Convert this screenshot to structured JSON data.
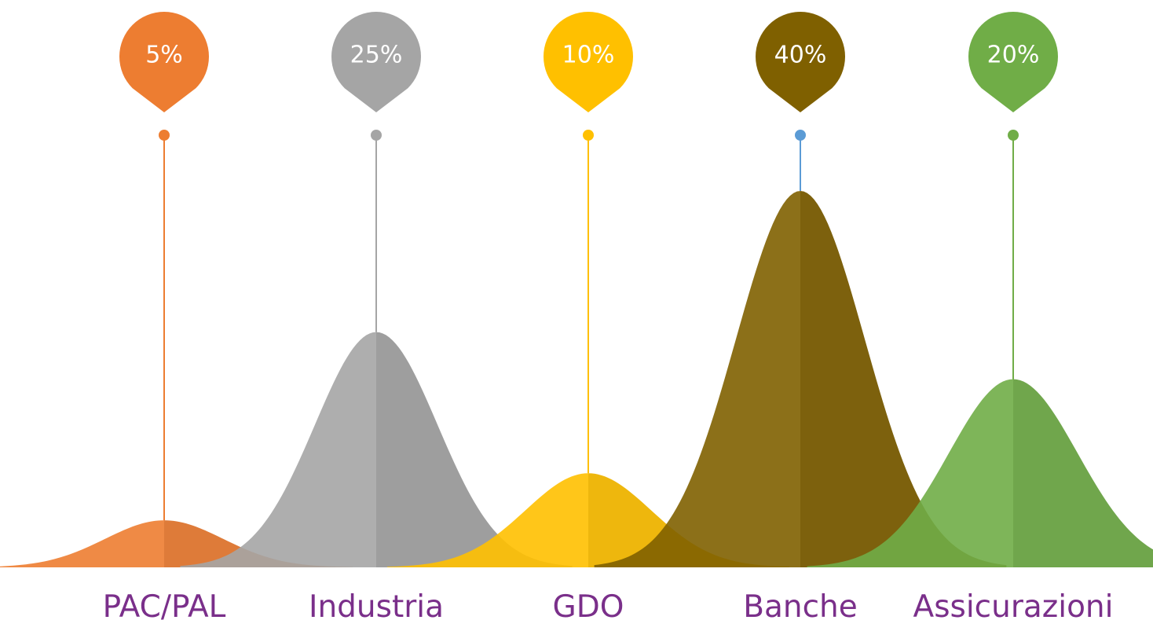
{
  "chart_data": {
    "type": "area",
    "title": "",
    "xlabel": "",
    "ylabel": "",
    "ylim": [
      0,
      40
    ],
    "grid": false,
    "series": [
      {
        "category": "PAC/PAL",
        "value": 5,
        "label": "5%",
        "color": "#ED7D31",
        "line_color": "#ED7D31"
      },
      {
        "category": "Industria",
        "value": 25,
        "label": "25%",
        "color": "#A5A5A5",
        "line_color": "#A5A5A5"
      },
      {
        "category": "GDO",
        "value": 10,
        "label": "10%",
        "color": "#FFC000",
        "line_color": "#FFC000"
      },
      {
        "category": "Banche",
        "value": 40,
        "label": "40%",
        "color": "#7F6000",
        "line_color": "#5B9BD5"
      },
      {
        "category": "Assicurazioni",
        "value": 20,
        "label": "20%",
        "color": "#70AD47",
        "line_color": "#70AD47"
      }
    ]
  }
}
